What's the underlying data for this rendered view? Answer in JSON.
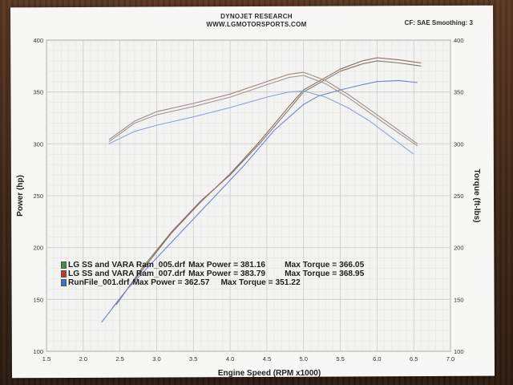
{
  "photo": {
    "header": {
      "title": "DYNOJET RESEARCH",
      "subtitle": "WWW.LGMOTORSPORTS.COM",
      "settings": "CF: SAE  Smoothing: 3"
    },
    "legend": [
      {
        "file": "LG SS and VARA Ram_005.drf",
        "power_label": "Max Power = 381.16",
        "torque_label": "Max Torque = 366.05",
        "color": "#3f8f4a"
      },
      {
        "file": "LG SS and VARA Ram_007.drf",
        "power_label": "Max Power = 383.79",
        "torque_label": "Max Torque = 368.95",
        "color": "#c0392b"
      },
      {
        "file": "RunFile_001.drf",
        "power_label": "Max Power = 362.57",
        "torque_label": "Max Torque = 351.22",
        "color": "#3b6fd1"
      }
    ]
  },
  "chart_data": {
    "type": "line",
    "title": "DYNOJET RESEARCH",
    "subtitle": "WWW.LGMOTORSPORTS.COM",
    "xlabel": "Engine Speed (RPM x1000)",
    "ylabel_left": "Power (hp)",
    "ylabel_right": "Torque (ft-lbs)",
    "xlim": [
      1.5,
      7.0
    ],
    "ylim": [
      100,
      400
    ],
    "xticks": [
      "1.5",
      "2.0",
      "2.5",
      "3.0",
      "3.5",
      "4.0",
      "4.5",
      "5.0",
      "5.5",
      "6.0",
      "6.5",
      "7.0"
    ],
    "yticks": [
      "100",
      "150",
      "200",
      "250",
      "300",
      "350",
      "400"
    ],
    "grid": true,
    "series": [
      {
        "name": "LG SS and VARA Ram_005.drf",
        "measure": "power",
        "color": "#7a7a6e",
        "x": [
          2.45,
          2.8,
          3.2,
          3.6,
          4.0,
          4.4,
          4.8,
          5.0,
          5.2,
          5.5,
          5.8,
          6.0,
          6.3,
          6.6
        ],
        "y": [
          145,
          180,
          215,
          245,
          270,
          300,
          333,
          350,
          358,
          370,
          377,
          380,
          378,
          375
        ]
      },
      {
        "name": "LG SS and VARA Ram_007.drf",
        "measure": "power",
        "color": "#8a6a5a",
        "x": [
          2.4,
          2.8,
          3.2,
          3.6,
          4.0,
          4.4,
          4.8,
          5.0,
          5.2,
          5.5,
          5.8,
          6.0,
          6.3,
          6.6
        ],
        "y": [
          142,
          178,
          214,
          244,
          271,
          302,
          336,
          352,
          360,
          372,
          380,
          383,
          381,
          378
        ]
      },
      {
        "name": "RunFile_001.drf",
        "measure": "power",
        "color": "#6f86c4",
        "x": [
          2.25,
          2.6,
          3.0,
          3.4,
          3.8,
          4.2,
          4.6,
          5.0,
          5.2,
          5.5,
          5.8,
          6.0,
          6.3,
          6.55
        ],
        "y": [
          128,
          160,
          190,
          220,
          250,
          280,
          313,
          338,
          346,
          352,
          357,
          360,
          361,
          359
        ]
      },
      {
        "name": "LG SS and VARA Ram_005.drf",
        "measure": "torque",
        "color": "#9a9a90",
        "x": [
          2.35,
          2.7,
          3.0,
          3.5,
          4.0,
          4.5,
          4.8,
          5.0,
          5.3,
          5.6,
          5.9,
          6.2,
          6.55
        ],
        "y": [
          302,
          320,
          328,
          336,
          345,
          357,
          364,
          366,
          358,
          345,
          330,
          315,
          298
        ]
      },
      {
        "name": "LG SS and VARA Ram_007.drf",
        "measure": "torque",
        "color": "#a08a80",
        "x": [
          2.35,
          2.7,
          3.0,
          3.5,
          4.0,
          4.5,
          4.8,
          5.0,
          5.3,
          5.6,
          5.9,
          6.2,
          6.55
        ],
        "y": [
          304,
          322,
          331,
          339,
          348,
          360,
          367,
          369,
          361,
          348,
          333,
          318,
          300
        ]
      },
      {
        "name": "RunFile_001.drf",
        "measure": "torque",
        "color": "#8fa3d6",
        "x": [
          2.35,
          2.7,
          3.0,
          3.5,
          4.0,
          4.5,
          4.8,
          5.0,
          5.3,
          5.6,
          5.9,
          6.2,
          6.5
        ],
        "y": [
          300,
          312,
          318,
          326,
          335,
          345,
          350,
          351,
          345,
          335,
          322,
          306,
          290
        ]
      }
    ]
  }
}
